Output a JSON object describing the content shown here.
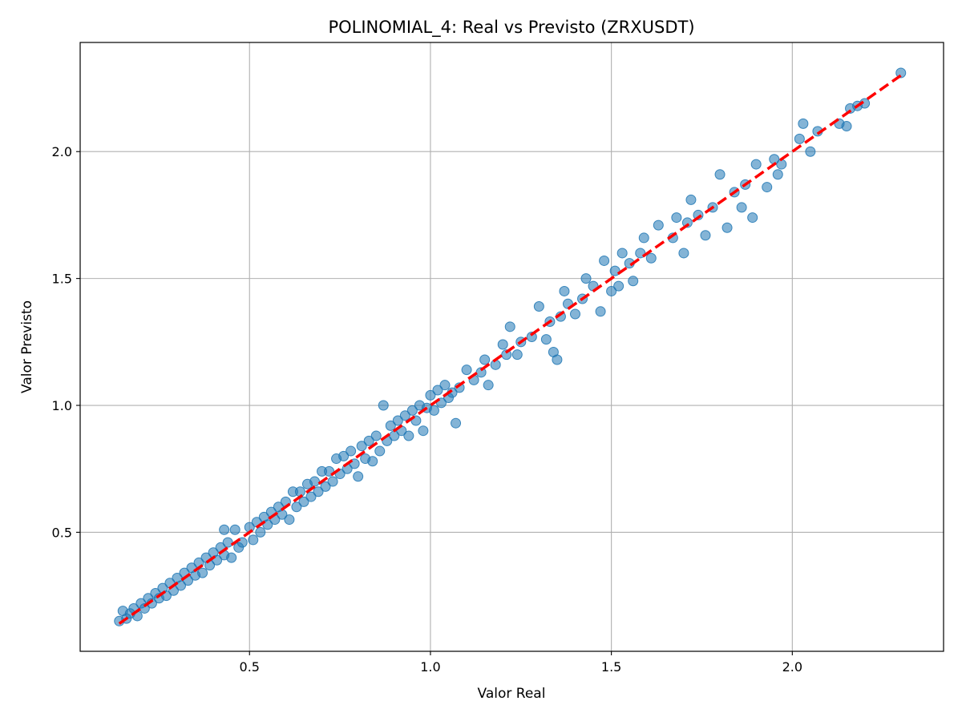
{
  "chart_data": {
    "type": "scatter",
    "title": "POLINOMIAL_4: Real vs Previsto (ZRXUSDT)",
    "xlabel": "Valor Real",
    "ylabel": "Valor Previsto",
    "xlim": [
      0.032,
      2.418
    ],
    "ylim": [
      0.031,
      2.43
    ],
    "xticks": [
      0.5,
      1.0,
      1.5,
      2.0
    ],
    "yticks": [
      0.5,
      1.0,
      1.5,
      2.0
    ],
    "xtick_labels": [
      "0.5",
      "1.0",
      "1.5",
      "2.0"
    ],
    "ytick_labels": [
      "0.5",
      "1.0",
      "1.5",
      "2.0"
    ],
    "grid": true,
    "colors": {
      "points": "#1f77b4",
      "reference_line": "#ff0000",
      "grid": "#b0b0b0"
    },
    "reference_line": {
      "name": "ideal",
      "x": [
        0.14,
        2.3
      ],
      "y": [
        0.14,
        2.3
      ],
      "style": "dashed"
    },
    "series": [
      {
        "name": "Real vs Previsto",
        "points": [
          [
            0.14,
            0.15
          ],
          [
            0.15,
            0.19
          ],
          [
            0.16,
            0.16
          ],
          [
            0.17,
            0.18
          ],
          [
            0.18,
            0.2
          ],
          [
            0.19,
            0.17
          ],
          [
            0.2,
            0.22
          ],
          [
            0.21,
            0.2
          ],
          [
            0.22,
            0.24
          ],
          [
            0.23,
            0.22
          ],
          [
            0.24,
            0.26
          ],
          [
            0.25,
            0.24
          ],
          [
            0.26,
            0.28
          ],
          [
            0.27,
            0.25
          ],
          [
            0.28,
            0.3
          ],
          [
            0.29,
            0.27
          ],
          [
            0.3,
            0.32
          ],
          [
            0.31,
            0.29
          ],
          [
            0.32,
            0.34
          ],
          [
            0.33,
            0.31
          ],
          [
            0.34,
            0.36
          ],
          [
            0.35,
            0.33
          ],
          [
            0.36,
            0.38
          ],
          [
            0.37,
            0.34
          ],
          [
            0.38,
            0.4
          ],
          [
            0.39,
            0.37
          ],
          [
            0.4,
            0.42
          ],
          [
            0.41,
            0.39
          ],
          [
            0.42,
            0.44
          ],
          [
            0.43,
            0.41
          ],
          [
            0.43,
            0.51
          ],
          [
            0.44,
            0.46
          ],
          [
            0.45,
            0.4
          ],
          [
            0.46,
            0.51
          ],
          [
            0.47,
            0.44
          ],
          [
            0.48,
            0.46
          ],
          [
            0.5,
            0.52
          ],
          [
            0.51,
            0.47
          ],
          [
            0.52,
            0.54
          ],
          [
            0.53,
            0.5
          ],
          [
            0.54,
            0.56
          ],
          [
            0.55,
            0.53
          ],
          [
            0.56,
            0.58
          ],
          [
            0.57,
            0.55
          ],
          [
            0.58,
            0.6
          ],
          [
            0.59,
            0.57
          ],
          [
            0.6,
            0.62
          ],
          [
            0.61,
            0.55
          ],
          [
            0.62,
            0.66
          ],
          [
            0.63,
            0.6
          ],
          [
            0.64,
            0.66
          ],
          [
            0.65,
            0.62
          ],
          [
            0.66,
            0.69
          ],
          [
            0.67,
            0.64
          ],
          [
            0.68,
            0.7
          ],
          [
            0.69,
            0.66
          ],
          [
            0.7,
            0.74
          ],
          [
            0.71,
            0.68
          ],
          [
            0.72,
            0.74
          ],
          [
            0.73,
            0.7
          ],
          [
            0.74,
            0.79
          ],
          [
            0.75,
            0.73
          ],
          [
            0.76,
            0.8
          ],
          [
            0.77,
            0.75
          ],
          [
            0.78,
            0.82
          ],
          [
            0.79,
            0.77
          ],
          [
            0.8,
            0.72
          ],
          [
            0.81,
            0.84
          ],
          [
            0.82,
            0.79
          ],
          [
            0.83,
            0.86
          ],
          [
            0.84,
            0.78
          ],
          [
            0.85,
            0.88
          ],
          [
            0.86,
            0.82
          ],
          [
            0.87,
            1.0
          ],
          [
            0.88,
            0.86
          ],
          [
            0.89,
            0.92
          ],
          [
            0.9,
            0.88
          ],
          [
            0.91,
            0.94
          ],
          [
            0.92,
            0.9
          ],
          [
            0.93,
            0.96
          ],
          [
            0.94,
            0.88
          ],
          [
            0.95,
            0.98
          ],
          [
            0.96,
            0.94
          ],
          [
            0.97,
            1.0
          ],
          [
            0.98,
            0.9
          ],
          [
            0.99,
            0.99
          ],
          [
            1.0,
            1.04
          ],
          [
            1.01,
            0.98
          ],
          [
            1.02,
            1.06
          ],
          [
            1.03,
            1.01
          ],
          [
            1.04,
            1.08
          ],
          [
            1.05,
            1.03
          ],
          [
            1.06,
            1.05
          ],
          [
            1.07,
            0.93
          ],
          [
            1.08,
            1.07
          ],
          [
            1.1,
            1.14
          ],
          [
            1.12,
            1.1
          ],
          [
            1.14,
            1.13
          ],
          [
            1.15,
            1.18
          ],
          [
            1.16,
            1.08
          ],
          [
            1.18,
            1.16
          ],
          [
            1.2,
            1.24
          ],
          [
            1.21,
            1.2
          ],
          [
            1.22,
            1.31
          ],
          [
            1.24,
            1.2
          ],
          [
            1.25,
            1.25
          ],
          [
            1.28,
            1.27
          ],
          [
            1.3,
            1.39
          ],
          [
            1.32,
            1.26
          ],
          [
            1.33,
            1.33
          ],
          [
            1.34,
            1.21
          ],
          [
            1.35,
            1.18
          ],
          [
            1.36,
            1.35
          ],
          [
            1.37,
            1.45
          ],
          [
            1.38,
            1.4
          ],
          [
            1.4,
            1.36
          ],
          [
            1.42,
            1.42
          ],
          [
            1.43,
            1.5
          ],
          [
            1.45,
            1.47
          ],
          [
            1.47,
            1.37
          ],
          [
            1.48,
            1.57
          ],
          [
            1.5,
            1.45
          ],
          [
            1.51,
            1.53
          ],
          [
            1.52,
            1.47
          ],
          [
            1.53,
            1.6
          ],
          [
            1.55,
            1.56
          ],
          [
            1.56,
            1.49
          ],
          [
            1.58,
            1.6
          ],
          [
            1.59,
            1.66
          ],
          [
            1.61,
            1.58
          ],
          [
            1.63,
            1.71
          ],
          [
            1.67,
            1.66
          ],
          [
            1.68,
            1.74
          ],
          [
            1.7,
            1.6
          ],
          [
            1.71,
            1.72
          ],
          [
            1.72,
            1.81
          ],
          [
            1.74,
            1.75
          ],
          [
            1.76,
            1.67
          ],
          [
            1.78,
            1.78
          ],
          [
            1.8,
            1.91
          ],
          [
            1.82,
            1.7
          ],
          [
            1.84,
            1.84
          ],
          [
            1.86,
            1.78
          ],
          [
            1.87,
            1.87
          ],
          [
            1.89,
            1.74
          ],
          [
            1.9,
            1.95
          ],
          [
            1.93,
            1.86
          ],
          [
            1.95,
            1.97
          ],
          [
            1.96,
            1.91
          ],
          [
            1.97,
            1.95
          ],
          [
            2.02,
            2.05
          ],
          [
            2.03,
            2.11
          ],
          [
            2.05,
            2.0
          ],
          [
            2.07,
            2.08
          ],
          [
            2.13,
            2.11
          ],
          [
            2.15,
            2.1
          ],
          [
            2.16,
            2.17
          ],
          [
            2.18,
            2.18
          ],
          [
            2.2,
            2.19
          ],
          [
            2.3,
            2.31
          ]
        ]
      }
    ]
  }
}
